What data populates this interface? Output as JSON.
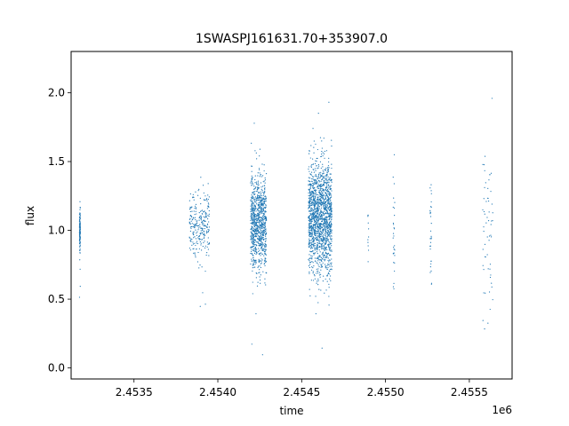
{
  "chart_data": {
    "type": "scatter",
    "title": "1SWASPJ161631.70+353907.0",
    "xlabel": "time",
    "ylabel": "flux",
    "x_offset_label": "1e6",
    "xlim": [
      2453125,
      2455755
    ],
    "ylim": [
      -0.08,
      2.3
    ],
    "x_ticks": [
      2453500,
      2454000,
      2454500,
      2455000,
      2455500
    ],
    "x_tick_labels": [
      "2.4535",
      "2.4540",
      "2.4545",
      "2.4550",
      "2.4555"
    ],
    "y_ticks": [
      0.0,
      0.5,
      1.0,
      1.5,
      2.0
    ],
    "y_tick_labels": [
      "0.0",
      "0.5",
      "1.0",
      "1.5",
      "2.0"
    ],
    "grid": false,
    "marker_color": "#1f77b4",
    "series": [
      {
        "clusters": [
          {
            "x_range": [
              2453175,
              2453180
            ],
            "flux_center": 1.0,
            "flux_spread": 0.07,
            "flux_range": [
              0.5,
              1.33
            ],
            "count": 140
          },
          {
            "x_range": [
              2453830,
              2453950
            ],
            "flux_center": 1.05,
            "flux_spread": 0.12,
            "flux_range": [
              0.42,
              1.55
            ],
            "count": 260
          },
          {
            "x_range": [
              2454195,
              2454290
            ],
            "flux_center": 1.05,
            "flux_spread": 0.17,
            "flux_range": [
              0.08,
              1.78
            ],
            "count": 900
          },
          {
            "x_range": [
              2454540,
              2454680
            ],
            "flux_center": 1.1,
            "flux_spread": 0.2,
            "flux_range": [
              0.05,
              2.18
            ],
            "count": 1600
          },
          {
            "x_range": [
              2454895,
              2454900
            ],
            "flux_center": 1.0,
            "flux_spread": 0.12,
            "flux_range": [
              0.72,
              1.15
            ],
            "count": 12
          },
          {
            "x_range": [
              2455045,
              2455055
            ],
            "flux_center": 0.95,
            "flux_spread": 0.22,
            "flux_range": [
              0.53,
              1.64
            ],
            "count": 30
          },
          {
            "x_range": [
              2455265,
              2455275
            ],
            "flux_center": 1.0,
            "flux_spread": 0.25,
            "flux_range": [
              0.03,
              1.48
            ],
            "count": 30
          },
          {
            "x_range": [
              2455580,
              2455640
            ],
            "flux_center": 1.05,
            "flux_spread": 0.35,
            "flux_range": [
              0.03,
              2.1
            ],
            "count": 60
          }
        ]
      }
    ]
  }
}
